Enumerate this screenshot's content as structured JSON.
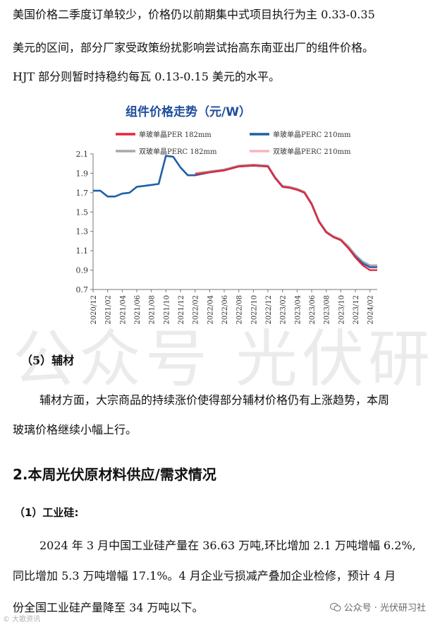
{
  "text": {
    "p1_line1": "美国价格二季度订单较少，价格仍以前期集中式项目执行为主  0.33-0.35",
    "p1_line2": "美元的区间，部分厂家受政策纷扰影响尝试抬高东南亚出厂的组件价格。",
    "p1_line3": "HJT  部分则暂时持稳约每瓦  0.13-0.15  美元的水平。",
    "sub5": "（5）辅材",
    "p2_line1": "辅材方面，大宗商品的持续涨价使得部分辅材价格仍有上涨趋势，本周",
    "p2_line2": "玻璃价格继续小幅上行。",
    "section2": "2.本周光伏原材料供应/需求情况",
    "sub1": "（1）工业硅:",
    "p3_line1": "2024 年 3 月中国工业硅产量在 36.63 万吨,环比增加 2.1 万吨增幅 6.2%,",
    "p3_line2": "同比增加  5.3  万吨增幅  17.1%。4 月企业亏损减产叠加企业检修，预计 4 月",
    "p3_line3": "份全国工业硅产量降至 34 万吨以下。",
    "watermark": "公众号 光伏研习社",
    "footer_mark": "公众号 · 光伏研习社",
    "corner_mark": "© 大歌资讯"
  },
  "chart_data": {
    "type": "line",
    "title": "组件价格走势（元/W）",
    "ylim": [
      0.7,
      2.1
    ],
    "yticks": [
      "2.1",
      "1.9",
      "1.7",
      "1.5",
      "1.3",
      "1.1",
      "0.9",
      "0.7"
    ],
    "xticks": [
      "2020/12",
      "2021/02",
      "2021/04",
      "2021/06",
      "2021/08",
      "2021/10",
      "2021/12",
      "2022/02",
      "2022/04",
      "2022/06",
      "2022/08",
      "2022/10",
      "2022/12",
      "2023/02",
      "2023/04",
      "2023/06",
      "2023/08",
      "2023/10",
      "2023/12",
      "2024/02"
    ],
    "legend_position": "top",
    "series": [
      {
        "name": "单玻单晶PER 182mm",
        "color": "#e8253a",
        "x": [
          "2022/02",
          "2022/04",
          "2022/06",
          "2022/08",
          "2022/10",
          "2022/12",
          "2023/01",
          "2023/02",
          "2023/03",
          "2023/04",
          "2023/05",
          "2023/06",
          "2023/07",
          "2023/08",
          "2023/09",
          "2023/10",
          "2023/11",
          "2023/12",
          "2024/01",
          "2024/02",
          "2024/03"
        ],
        "values": [
          1.89,
          1.91,
          1.93,
          1.97,
          1.98,
          1.97,
          1.85,
          1.76,
          1.75,
          1.73,
          1.7,
          1.58,
          1.4,
          1.29,
          1.24,
          1.21,
          1.13,
          1.03,
          0.95,
          0.9,
          0.9
        ]
      },
      {
        "name": "单玻单晶PERC 210mm",
        "color": "#1f5fa8",
        "x": [
          "2020/12",
          "2021/01",
          "2021/02",
          "2021/03",
          "2021/04",
          "2021/05",
          "2021/06",
          "2021/07",
          "2021/08",
          "2021/09",
          "2021/10",
          "2021/11",
          "2021/12",
          "2022/01",
          "2022/02",
          "2022/04",
          "2022/06",
          "2022/08",
          "2022/10",
          "2022/12",
          "2023/01",
          "2023/02",
          "2023/03",
          "2023/04",
          "2023/05",
          "2023/06",
          "2023/07",
          "2023/08",
          "2023/09",
          "2023/10",
          "2023/11",
          "2023/12",
          "2024/01",
          "2024/02",
          "2024/03"
        ],
        "values": [
          1.72,
          1.72,
          1.66,
          1.66,
          1.69,
          1.7,
          1.76,
          1.77,
          1.78,
          1.79,
          2.08,
          2.07,
          1.96,
          1.88,
          1.88,
          1.91,
          1.93,
          1.97,
          1.98,
          1.97,
          1.85,
          1.76,
          1.75,
          1.73,
          1.7,
          1.58,
          1.4,
          1.29,
          1.24,
          1.21,
          1.13,
          1.04,
          0.97,
          0.93,
          0.93
        ]
      },
      {
        "name": "双玻单晶PERC 182mm",
        "color": "#a8a8a8",
        "x": [
          "2022/02",
          "2022/04",
          "2022/06",
          "2022/08",
          "2022/10",
          "2022/12",
          "2023/01",
          "2023/02",
          "2023/03",
          "2023/04",
          "2023/05",
          "2023/06",
          "2023/07",
          "2023/08",
          "2023/09",
          "2023/10",
          "2023/11",
          "2023/12",
          "2024/01",
          "2024/02",
          "2024/03"
        ],
        "values": [
          1.9,
          1.92,
          1.94,
          1.98,
          1.99,
          1.98,
          1.86,
          1.77,
          1.76,
          1.74,
          1.71,
          1.59,
          1.41,
          1.3,
          1.25,
          1.22,
          1.15,
          1.06,
          0.99,
          0.95,
          0.95
        ]
      },
      {
        "name": "双玻单晶PERC 210mm",
        "color": "#f4b6bf",
        "x": [
          "2022/02",
          "2022/04",
          "2022/06",
          "2022/08",
          "2022/10",
          "2022/12",
          "2023/01",
          "2023/02",
          "2023/03",
          "2023/04",
          "2023/05",
          "2023/06",
          "2023/07",
          "2023/08",
          "2023/09",
          "2023/10",
          "2023/11",
          "2023/12",
          "2024/01",
          "2024/02",
          "2024/03"
        ],
        "values": [
          1.9,
          1.92,
          1.94,
          1.98,
          1.99,
          1.98,
          1.86,
          1.77,
          1.76,
          1.74,
          1.71,
          1.59,
          1.41,
          1.3,
          1.25,
          1.22,
          1.14,
          1.05,
          0.98,
          0.94,
          0.94
        ]
      }
    ]
  }
}
